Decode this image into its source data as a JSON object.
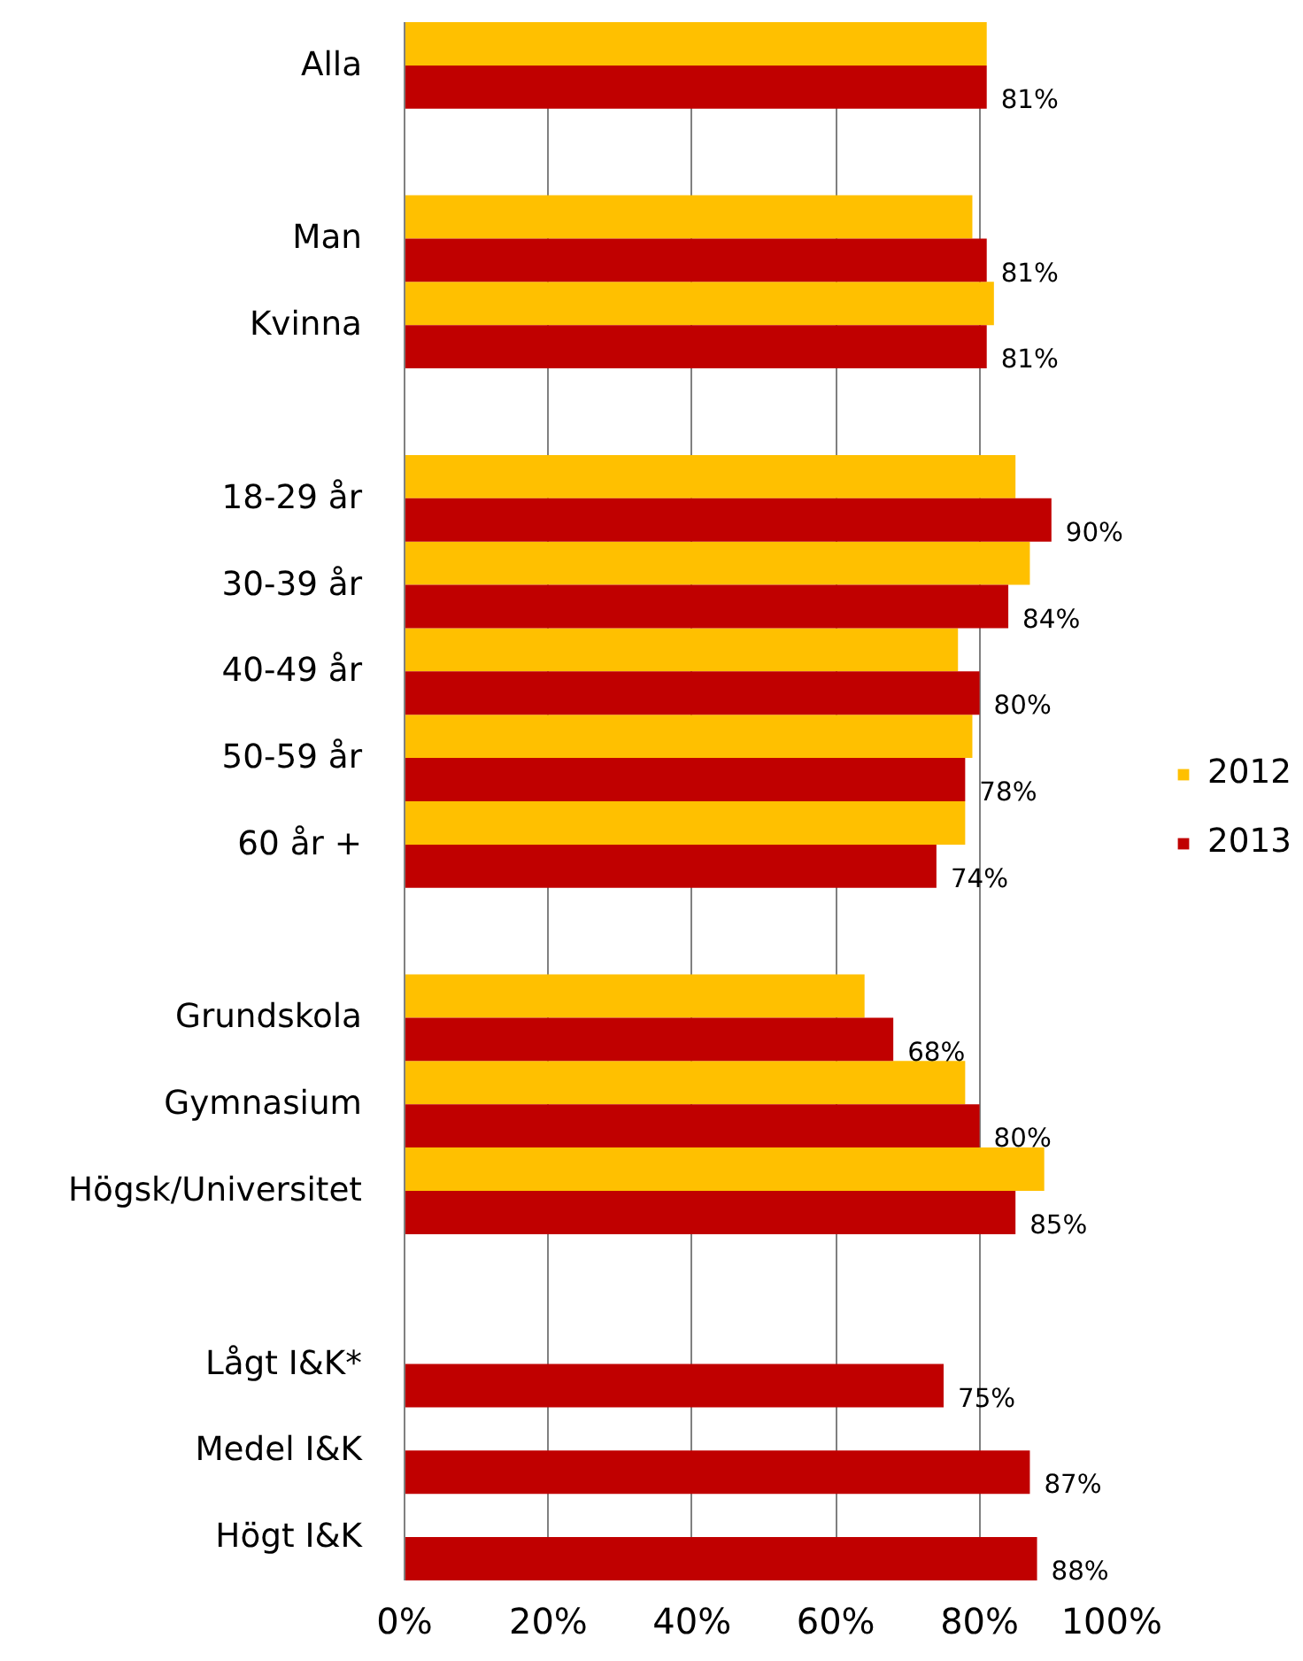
{
  "chart_data": {
    "type": "bar",
    "orientation": "horizontal",
    "categories": [
      "Alla",
      null,
      "Man",
      "Kvinna",
      null,
      "18-29 år",
      "30-39 år",
      "40-49 år",
      "50-59 år",
      "60 år +",
      null,
      "Grundskola",
      "Gymnasium",
      "Högsk/Universitet",
      null,
      "Lågt I&K*",
      "Medel I&K",
      "Högt I&K"
    ],
    "series": [
      {
        "name": "2012",
        "color": "#ffc000",
        "values": [
          81,
          null,
          79,
          82,
          null,
          85,
          87,
          77,
          79,
          78,
          null,
          64,
          78,
          89,
          null,
          null,
          null,
          null
        ]
      },
      {
        "name": "2013",
        "color": "#c00000",
        "values": [
          81,
          null,
          81,
          81,
          null,
          90,
          84,
          80,
          78,
          74,
          null,
          68,
          80,
          85,
          null,
          75,
          87,
          88
        ],
        "value_labels": [
          "81%",
          null,
          "81%",
          "81%",
          null,
          "90%",
          "84%",
          "80%",
          "78%",
          "74%",
          null,
          "68%",
          "80%",
          "85%",
          null,
          "75%",
          "87%",
          "88%"
        ]
      }
    ],
    "xlim": [
      0,
      100
    ],
    "xticks": [
      {
        "value": 0,
        "label": "0%"
      },
      {
        "value": 20,
        "label": "20%"
      },
      {
        "value": 40,
        "label": "40%"
      },
      {
        "value": 60,
        "label": "60%"
      },
      {
        "value": 80,
        "label": "80%"
      },
      {
        "value": 100,
        "label": "100%"
      }
    ],
    "grid": "x",
    "legend": "right"
  }
}
